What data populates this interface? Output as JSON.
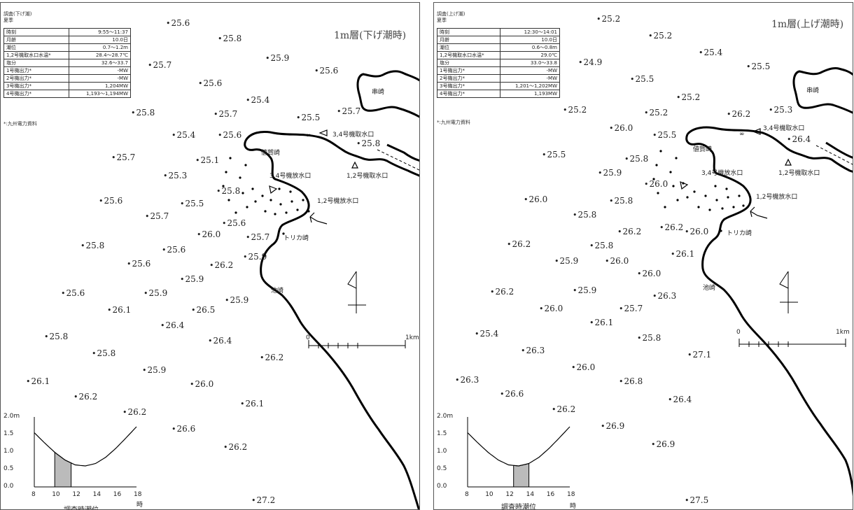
{
  "left": {
    "header_line1": "調査(下げ潮)",
    "header_line2": "夏季",
    "info_rows": [
      {
        "label": "時刻",
        "value": "9:55～11:37"
      },
      {
        "label": "月齢",
        "value": "10.0日"
      },
      {
        "label": "潮位",
        "value": "0.7～1.2m"
      },
      {
        "label": "1,2号機取水口水温*",
        "value": "28.4～28.7℃"
      },
      {
        "label": "塩分",
        "value": "32.6～33.7"
      },
      {
        "label": "1号機出力*",
        "value": "-MW"
      },
      {
        "label": "2号機出力*",
        "value": "-MW"
      },
      {
        "label": "3号機出力*",
        "value": "1,204MW"
      },
      {
        "label": "4号機出力*",
        "value": "1,193～1,194MW"
      }
    ],
    "note": "*:九州電力資料",
    "layer_title": "1m層(下げ潮時)",
    "points": [
      {
        "v": "25.6"
      },
      {
        "v": "25.8"
      },
      {
        "v": "25.9"
      },
      {
        "v": "25.6"
      },
      {
        "v": "25.7"
      },
      {
        "v": "25.6"
      },
      {
        "v": "25.4"
      },
      {
        "v": "25.8"
      },
      {
        "v": "25.7"
      },
      {
        "v": "25.5"
      },
      {
        "v": "25.7"
      },
      {
        "v": "25.4"
      },
      {
        "v": "25.6"
      },
      {
        "v": "25.8"
      },
      {
        "v": "25.7"
      },
      {
        "v": "25.1"
      },
      {
        "v": "25.3"
      },
      {
        "v": "25.8"
      },
      {
        "v": "25.6"
      },
      {
        "v": "25.5"
      },
      {
        "v": "25.7"
      },
      {
        "v": "25.6"
      },
      {
        "v": "26.0"
      },
      {
        "v": "25.7"
      },
      {
        "v": "25.8"
      },
      {
        "v": "25.6"
      },
      {
        "v": "25.9"
      },
      {
        "v": "25.6"
      },
      {
        "v": "26.2"
      },
      {
        "v": "25.9"
      },
      {
        "v": "25.6"
      },
      {
        "v": "25.9"
      },
      {
        "v": "26.1"
      },
      {
        "v": "26.5"
      },
      {
        "v": "25.9"
      },
      {
        "v": "26.4"
      },
      {
        "v": "25.8"
      },
      {
        "v": "26.4"
      },
      {
        "v": "25.8"
      },
      {
        "v": "26.2"
      },
      {
        "v": "25.9"
      },
      {
        "v": "26.1"
      },
      {
        "v": "26.0"
      },
      {
        "v": "26.2"
      },
      {
        "v": "26.1"
      },
      {
        "v": "26.2"
      },
      {
        "v": "26.6"
      },
      {
        "v": "26.2"
      },
      {
        "v": "27.2"
      }
    ],
    "place_labels": {
      "kushizaki": "串崎",
      "intake34": "3,4号機取水口",
      "intake12": "1,2号機取水口",
      "sagazaki": "値賀崎",
      "outlet34": "3,4号機放水口",
      "outlet12": "1,2号機放水口",
      "torikazaki": "トリカ崎",
      "ikezaki": "池崎"
    },
    "scale": {
      "zero": "0",
      "end": "1km"
    },
    "tide": {
      "y_ticks": [
        "2.0m",
        "1.5",
        "1.0",
        "0.5",
        "0.0"
      ],
      "x_ticks": [
        "8",
        "10",
        "12",
        "14",
        "16",
        "18"
      ],
      "unit": "時",
      "caption": "調査時潮位",
      "curve_m": [
        1.55,
        1.26,
        0.99,
        0.77,
        0.63,
        0.6,
        0.67,
        0.85,
        1.11,
        1.41,
        1.72
      ],
      "curve_hours": [
        8,
        9,
        10,
        11,
        12,
        13,
        14,
        15,
        16,
        17,
        18
      ],
      "shade_hours": [
        10.0,
        11.6
      ]
    }
  },
  "right": {
    "header_line1": "調査(上げ潮)",
    "header_line2": "夏季",
    "info_rows": [
      {
        "label": "時刻",
        "value": "12:30～14:01"
      },
      {
        "label": "月齢",
        "value": "10.0日"
      },
      {
        "label": "潮位",
        "value": "0.6～0.8m"
      },
      {
        "label": "1,2号機取水口水温*",
        "value": "29.0℃"
      },
      {
        "label": "塩分",
        "value": "33.0～33.8"
      },
      {
        "label": "1号機出力*",
        "value": "-MW"
      },
      {
        "label": "2号機出力*",
        "value": "-MW"
      },
      {
        "label": "3号機出力*",
        "value": "1,201～1,202MW"
      },
      {
        "label": "4号機出力*",
        "value": "1,193MW"
      }
    ],
    "note": "*:九州電力資料",
    "layer_title": "1m層(上げ潮時)",
    "points": [
      {
        "v": "25.2"
      },
      {
        "v": "25.2"
      },
      {
        "v": "25.4"
      },
      {
        "v": "24.9"
      },
      {
        "v": "25.5"
      },
      {
        "v": "25.5"
      },
      {
        "v": "25.2"
      },
      {
        "v": "25.2"
      },
      {
        "v": "25.2"
      },
      {
        "v": "26.2"
      },
      {
        "v": "25.3"
      },
      {
        "v": "26.0"
      },
      {
        "v": "25.5"
      },
      {
        "v": "26.4"
      },
      {
        "v": "25.5"
      },
      {
        "v": "25.8"
      },
      {
        "v": "25.9"
      },
      {
        "v": "26.0"
      },
      {
        "v": "26.2"
      },
      {
        "v": "25.8"
      },
      {
        "v": "25.8"
      },
      {
        "v": "26.0"
      },
      {
        "v": "26.2"
      },
      {
        "v": "26.0"
      },
      {
        "v": "26.2"
      },
      {
        "v": "25.8"
      },
      {
        "v": "26.1"
      },
      {
        "v": "25.9"
      },
      {
        "v": "26.0"
      },
      {
        "v": "26.0"
      },
      {
        "v": "26.2"
      },
      {
        "v": "25.9"
      },
      {
        "v": "26.0"
      },
      {
        "v": "25.7"
      },
      {
        "v": "26.3"
      },
      {
        "v": "26.1"
      },
      {
        "v": "25.4"
      },
      {
        "v": "25.8"
      },
      {
        "v": "26.3"
      },
      {
        "v": "27.1"
      },
      {
        "v": "26.0"
      },
      {
        "v": "26.4"
      },
      {
        "v": "26.8"
      },
      {
        "v": "26.2"
      },
      {
        "v": "26.3"
      },
      {
        "v": "26.6"
      },
      {
        "v": "26.9"
      },
      {
        "v": "26.9"
      },
      {
        "v": "27.5"
      }
    ],
    "place_labels": {
      "kushizaki": "串崎",
      "intake34": "3,4号機取水口",
      "intake12": "1,2号機取水口",
      "sagazaki": "値賀崎",
      "outlet34": "3,4号機放水口",
      "outlet12": "1,2号機放水口",
      "torikazaki": "トリカ崎",
      "ikezaki": "池崎"
    },
    "scale": {
      "zero": "0",
      "end": "1km"
    },
    "tide": {
      "y_ticks": [
        "2.0m",
        "1.5",
        "1.0",
        "0.5",
        "0.0"
      ],
      "x_ticks": [
        "8",
        "10",
        "12",
        "14",
        "16",
        "18"
      ],
      "unit": "時",
      "caption": "調査時潮位",
      "curve_m": [
        1.55,
        1.26,
        0.99,
        0.77,
        0.63,
        0.6,
        0.67,
        0.85,
        1.11,
        1.41,
        1.72
      ],
      "curve_hours": [
        8,
        9,
        10,
        11,
        12,
        13,
        14,
        15,
        16,
        17,
        18
      ],
      "shade_hours": [
        12.5,
        14.0
      ]
    }
  }
}
